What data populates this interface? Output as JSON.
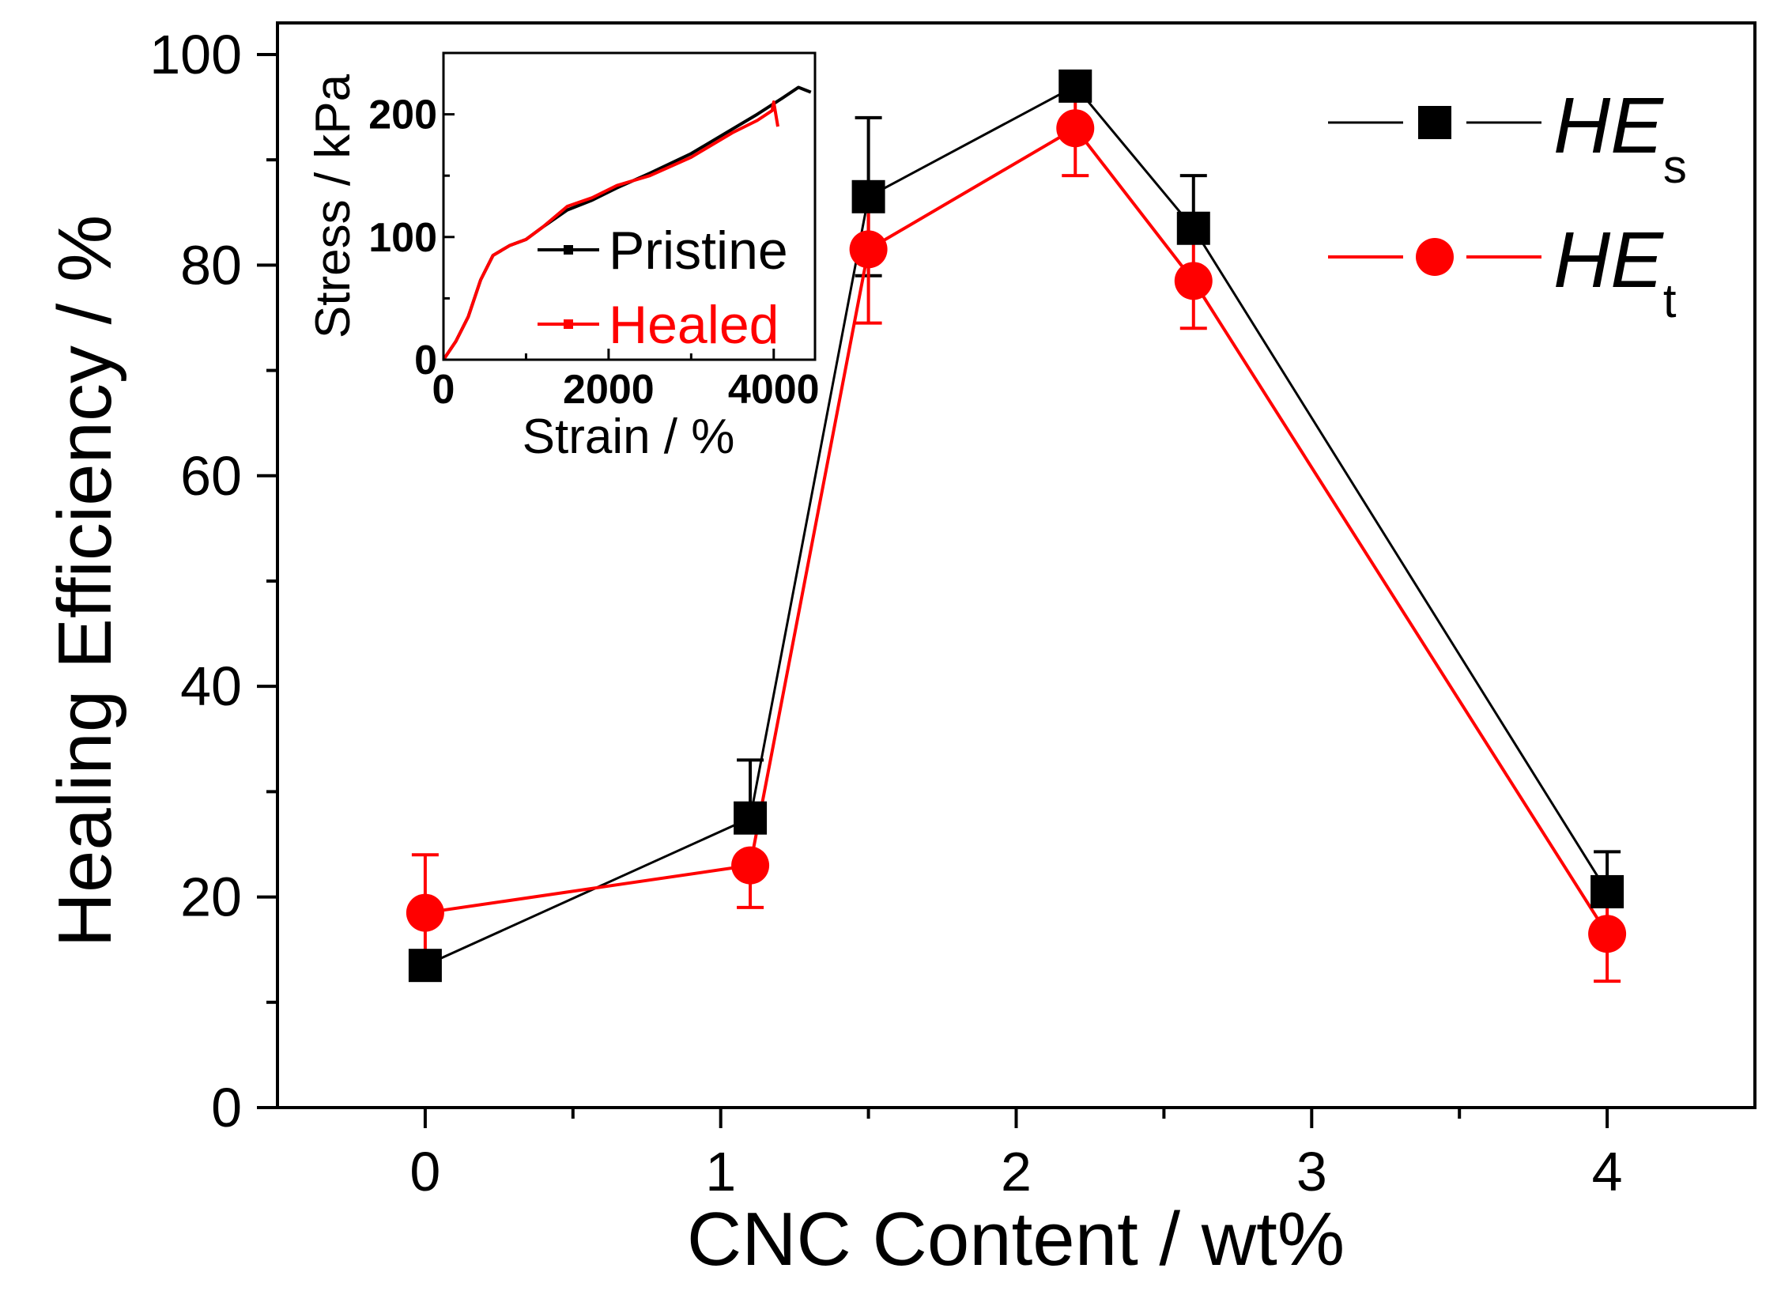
{
  "chart_data": [
    {
      "type": "line",
      "title": "",
      "xlabel": "CNC Content / wt%",
      "ylabel": "Healing Efficiency / %",
      "xlim": [
        -0.5,
        4.5
      ],
      "ylim": [
        0,
        103
      ],
      "xticks": [
        0,
        1,
        2,
        3,
        4
      ],
      "xtick_labels": [
        "0",
        "1",
        "2",
        "3",
        "4"
      ],
      "yticks": [
        0,
        20,
        40,
        60,
        80,
        100
      ],
      "ytick_labels": [
        "0",
        "20",
        "40",
        "60",
        "80",
        "100"
      ],
      "legend_position": "top-right",
      "series": [
        {
          "name": "HE",
          "subscript": "s",
          "color": "#000000",
          "marker": "square",
          "x": [
            0,
            1.1,
            1.5,
            2.2,
            2.6,
            4
          ],
          "y": [
            13.5,
            27.5,
            86.5,
            97,
            83.5,
            20.5
          ],
          "err_up": [
            0,
            5.5,
            7.5,
            0,
            5,
            3.8
          ],
          "err_down": [
            0,
            0,
            7.5,
            0,
            0,
            0
          ]
        },
        {
          "name": "HE",
          "subscript": "t",
          "color": "#ff0000",
          "marker": "circle",
          "x": [
            0,
            1.1,
            1.5,
            2.2,
            2.6,
            4
          ],
          "y": [
            18.5,
            23,
            81.5,
            93,
            78.5,
            16.5
          ],
          "err_up": [
            5.5,
            0,
            5,
            4.5,
            4.5,
            4.5
          ],
          "err_down": [
            5.5,
            4,
            7,
            4.5,
            4.5,
            4.5
          ]
        }
      ]
    },
    {
      "type": "line",
      "title": "",
      "xlabel": "Strain / %",
      "ylabel": "Stress / kPa",
      "xlim": [
        0,
        4500
      ],
      "ylim": [
        0,
        250
      ],
      "xticks": [
        0,
        2000,
        4000
      ],
      "xtick_labels": [
        "0",
        "2000",
        "4000"
      ],
      "yticks": [
        0,
        100,
        200
      ],
      "ytick_labels": [
        "0",
        "100",
        "200"
      ],
      "legend_position": "bottom-right",
      "series": [
        {
          "name": "Pristine",
          "color": "#000000",
          "x": [
            0,
            150,
            300,
            450,
            600,
            800,
            1000,
            1200,
            1500,
            1800,
            2100,
            2500,
            3000,
            3500,
            3800,
            4100,
            4300,
            4450
          ],
          "y": [
            0,
            15,
            35,
            65,
            85,
            93,
            98,
            108,
            122,
            130,
            140,
            152,
            168,
            188,
            200,
            213,
            222,
            218
          ]
        },
        {
          "name": "Healed",
          "color": "#ff0000",
          "x": [
            0,
            150,
            300,
            450,
            600,
            800,
            1000,
            1200,
            1500,
            1800,
            2100,
            2500,
            3000,
            3500,
            3800,
            3980,
            4000,
            4050
          ],
          "y": [
            0,
            15,
            35,
            65,
            85,
            93,
            98,
            108,
            125,
            132,
            142,
            150,
            165,
            185,
            195,
            203,
            210,
            190
          ]
        }
      ]
    }
  ]
}
